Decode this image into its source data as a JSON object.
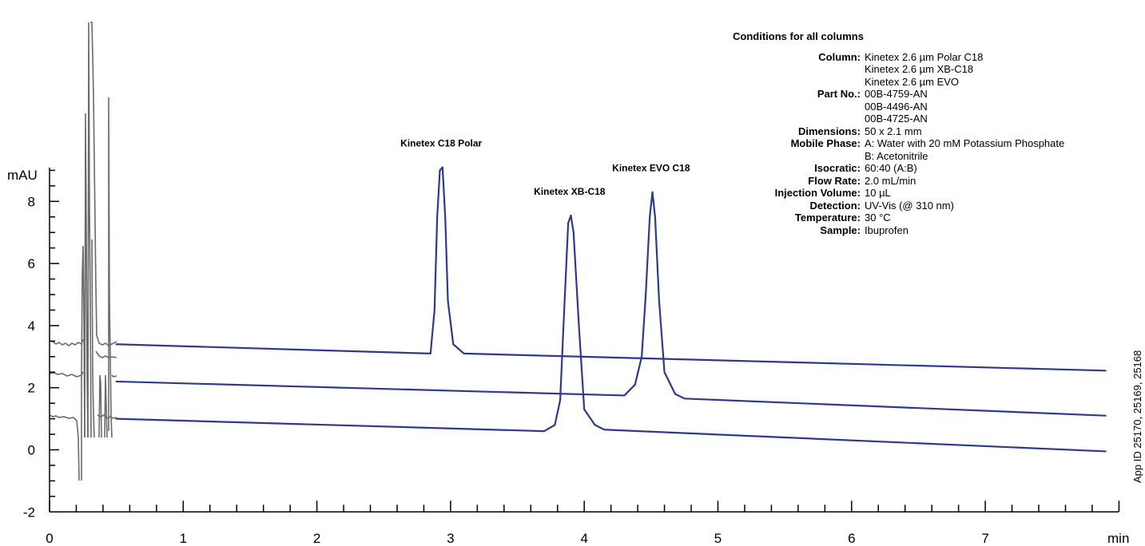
{
  "chart_data": {
    "type": "line",
    "title": "",
    "xlabel": "min",
    "ylabel": "mAU",
    "xlim": [
      0,
      8
    ],
    "ylim": [
      -2,
      9
    ],
    "x_ticks": [
      0,
      1,
      2,
      3,
      4,
      5,
      6,
      7
    ],
    "y_ticks": [
      -2,
      0,
      2,
      4,
      6,
      8
    ],
    "grid": false,
    "legend": "none",
    "series": [
      {
        "color": "#2d3a8c",
        "points": [
          [
            0.5,
            3.4
          ],
          [
            2.85,
            3.1
          ],
          [
            2.88,
            4.5
          ],
          [
            2.9,
            7.5
          ],
          [
            2.92,
            9.0
          ],
          [
            2.94,
            9.1
          ],
          [
            2.96,
            7.5
          ],
          [
            2.98,
            4.8
          ],
          [
            3.02,
            3.4
          ],
          [
            3.1,
            3.1
          ],
          [
            7.9,
            2.55
          ]
        ]
      },
      {
        "color": "#2d3a8c",
        "points": [
          [
            0.5,
            2.2
          ],
          [
            4.3,
            1.75
          ],
          [
            4.38,
            2.1
          ],
          [
            4.43,
            3.0
          ],
          [
            4.46,
            5.0
          ],
          [
            4.49,
            7.5
          ],
          [
            4.51,
            8.3
          ],
          [
            4.53,
            7.5
          ],
          [
            4.56,
            4.8
          ],
          [
            4.6,
            2.5
          ],
          [
            4.68,
            1.8
          ],
          [
            4.75,
            1.65
          ],
          [
            7.9,
            1.1
          ]
        ]
      },
      {
        "color": "#2d3a8c",
        "points": [
          [
            0.5,
            1.0
          ],
          [
            3.7,
            0.6
          ],
          [
            3.78,
            0.8
          ],
          [
            3.82,
            1.6
          ],
          [
            3.85,
            4.5
          ],
          [
            3.88,
            7.3
          ],
          [
            3.9,
            7.55
          ],
          [
            3.92,
            7.0
          ],
          [
            3.96,
            4.0
          ],
          [
            4.0,
            1.3
          ],
          [
            4.08,
            0.8
          ],
          [
            4.15,
            0.65
          ],
          [
            7.9,
            -0.05
          ]
        ]
      }
    ],
    "annotations": [
      {
        "text": "Kinetex C18 Polar",
        "x": 2.93,
        "y": 9.1
      },
      {
        "text": "Kinetex XB-C18",
        "x": 3.89,
        "y": 7.55
      },
      {
        "text": "Kinetex EVO C18",
        "x": 4.5,
        "y": 8.3
      }
    ],
    "side_note": "App ID 25170, 25169, 25168"
  },
  "conditions": {
    "title": "Conditions for all columns",
    "rows": [
      {
        "key": "Column:",
        "values": [
          "Kinetex 2.6 µm Polar C18",
          "Kinetex 2.6 µm XB-C18",
          "Kinetex 2.6 µm EVO"
        ]
      },
      {
        "key": "Part No.:",
        "values": [
          "00B-4759-AN",
          "00B-4496-AN",
          "00B-4725-AN"
        ]
      },
      {
        "key": "Dimensions:",
        "values": [
          "50 x 2.1 mm"
        ]
      },
      {
        "key": "Mobile Phase:",
        "values": [
          "A: Water with 20 mM Potassium Phosphate",
          "B: Acetonitrile"
        ]
      },
      {
        "key": "Isocratic:",
        "values": [
          "60:40 (A:B)"
        ]
      },
      {
        "key": "Flow Rate:",
        "values": [
          "2.0 mL/min"
        ]
      },
      {
        "key": "Injection Volume:",
        "values": [
          "10 µL"
        ]
      },
      {
        "key": "Detection:",
        "values": [
          "UV-Vis (@ 310 nm)"
        ]
      },
      {
        "key": "Temperature:",
        "values": [
          "30 °C"
        ]
      },
      {
        "key": "Sample:",
        "values": [
          "Ibuprofen"
        ]
      }
    ]
  }
}
